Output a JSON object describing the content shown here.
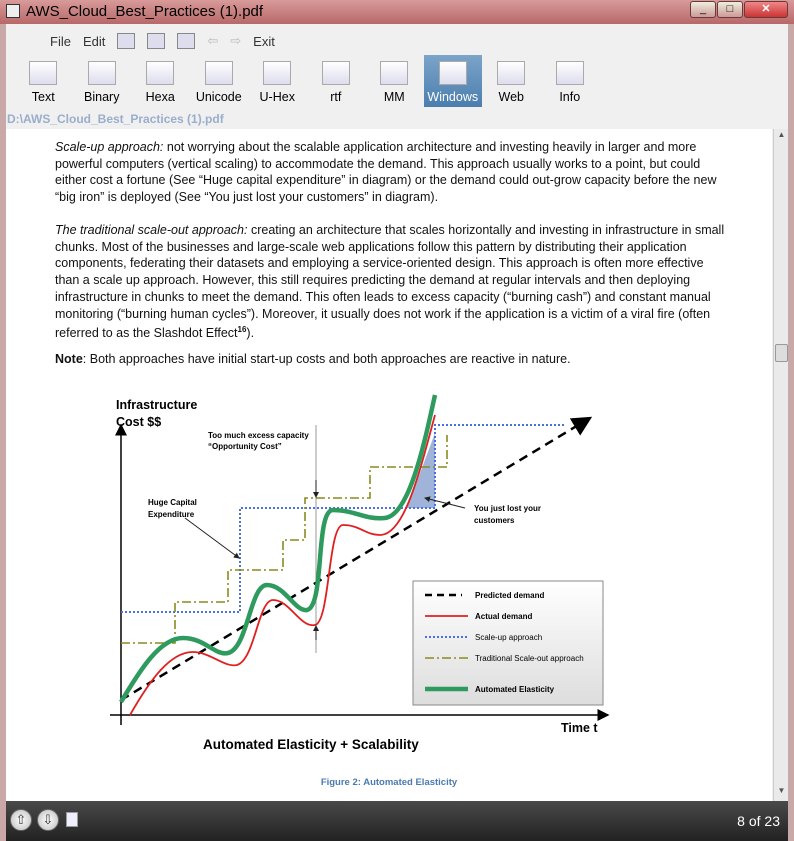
{
  "window": {
    "title": "AWS_Cloud_Best_Practices (1).pdf"
  },
  "menu": {
    "file": "File",
    "edit": "Edit",
    "exit": "Exit"
  },
  "toolbar": [
    {
      "label": "Text",
      "icon": "text-doc-icon"
    },
    {
      "label": "Binary",
      "icon": "binary-doc-icon"
    },
    {
      "label": "Hexa",
      "icon": "hexa-doc-icon"
    },
    {
      "label": "Unicode",
      "icon": "unicode-doc-icon"
    },
    {
      "label": "U-Hex",
      "icon": "uhex-doc-icon"
    },
    {
      "label": "rtf",
      "icon": "rtf-doc-icon"
    },
    {
      "label": "MM",
      "icon": "mm-icon"
    },
    {
      "label": "Windows",
      "icon": "windows-doc-icon",
      "active": true
    },
    {
      "label": "Web",
      "icon": "globe-icon"
    },
    {
      "label": "Info",
      "icon": "info-icon"
    }
  ],
  "path": "D:\\AWS_Cloud_Best_Practices (1).pdf",
  "document": {
    "p1_em": "Scale-up approach:",
    "p1": " not worrying about the scalable application architecture and investing heavily in larger and more powerful computers (vertical scaling) to accommodate the demand. This approach usually works to a point, but could either cost a fortune (See “Huge capital expenditure” in diagram) or the demand could out-grow capacity before the new “big iron” is deployed (See “You just lost your customers” in diagram).",
    "p2_em": "The traditional scale-out approach:",
    "p2": " creating an architecture that scales horizontally and investing in infrastructure in small chunks. Most of the businesses and large-scale web applications follow this pattern by distributing their application components, federating their datasets and employing a service-oriented design. This approach is often more effective than a scale up approach. However, this still requires predicting the demand at regular intervals and then deploying infrastructure in chunks to meet the demand. This often leads to excess capacity (“burning cash”) and constant manual monitoring (“burning human cycles”). Moreover, it usually does not work if the application is a victim of a viral fire (often referred to as the Slashdot Effect",
    "p2_sup": "16",
    "p2_end": ").",
    "p3_b": "Note",
    "p3": ": Both approaches have initial start-up costs and both approaches are reactive in nature.",
    "diagram": {
      "ylabel1": "Infrastructure",
      "ylabel2": "Cost $$",
      "xlabel": "Time t",
      "title": "Automated Elasticity + Scalability",
      "ann_excess1": "Too much excess capacity",
      "ann_excess2": "“Opportunity Cost”",
      "ann_capex1": "Huge Capital",
      "ann_capex2": "Expenditure",
      "ann_lost1": "You just lost your",
      "ann_lost2": "customers",
      "legend": [
        "Predicted demand",
        "Actual demand",
        "Scale-up approach",
        "Traditional Scale-out approach",
        "Automated Elasticity"
      ],
      "colors": {
        "predicted": "#000000",
        "actual": "#e02020",
        "scaleup": "#4a6fe0",
        "scaleout": "#8a8a20",
        "elastic": "#2e9a5e",
        "lost": "#9fb4d8"
      }
    },
    "caption": "Figure 2: Automated Elasticity"
  },
  "status": {
    "page": "8 of 23"
  }
}
